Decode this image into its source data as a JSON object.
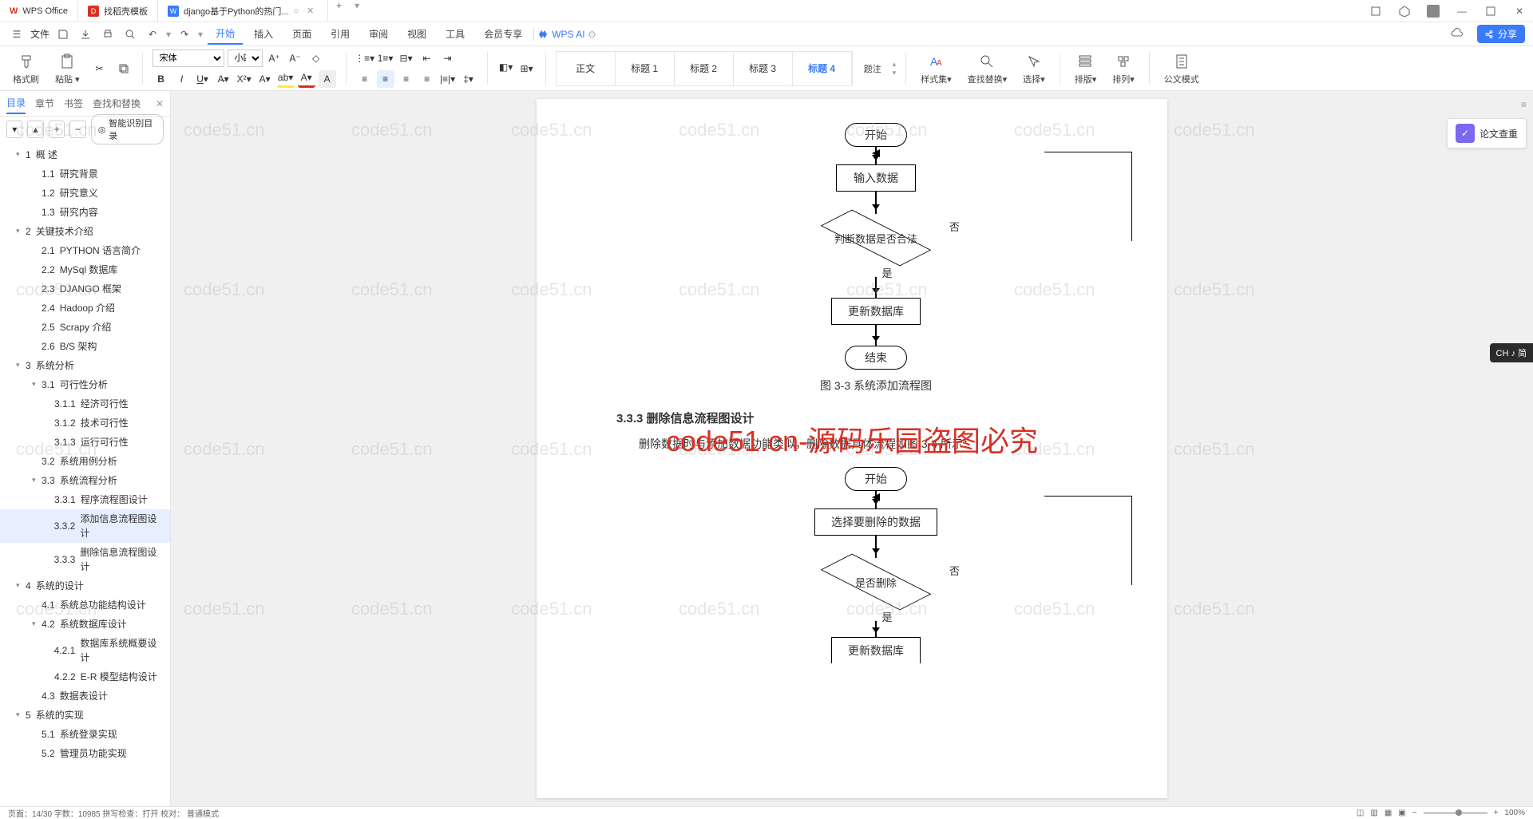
{
  "app": {
    "name": "WPS Office"
  },
  "tabs": [
    {
      "icon_color": "#d93025",
      "label": "找稻壳模板"
    },
    {
      "icon_color": "#3a7afe",
      "label": "django基于Python的热门...",
      "active": true
    }
  ],
  "window_buttons": [
    "⊡",
    "⬡",
    "▦",
    "—",
    "▢",
    "✕"
  ],
  "file_menu": "文件",
  "menu": {
    "items": [
      "开始",
      "插入",
      "页面",
      "引用",
      "审阅",
      "视图",
      "工具",
      "会员专享"
    ],
    "active": "开始",
    "ai": "WPS AI",
    "share": "分享"
  },
  "ribbon": {
    "format_painter": "格式刷",
    "paste": "粘贴",
    "font_name": "宋体",
    "font_size": "小四",
    "styles": [
      "正文",
      "标题 1",
      "标题 2",
      "标题 3",
      "标题 4"
    ],
    "active_style": "标题 4",
    "annotate": "题注",
    "style_group": "样式集",
    "find_replace": "查找替换",
    "select": "选择",
    "arrange": "排版",
    "align": "排列",
    "gov_mode": "公文模式"
  },
  "sidebar": {
    "tabs": [
      "目录",
      "章节",
      "书签",
      "查找和替换"
    ],
    "active_tab": "目录",
    "smart_toc": "智能识别目录",
    "outline": [
      {
        "lvl": 0,
        "exp": true,
        "num": "1",
        "text": "概   述"
      },
      {
        "lvl": 1,
        "num": "1.1",
        "text": "研究背景"
      },
      {
        "lvl": 1,
        "num": "1.2",
        "text": "研究意义"
      },
      {
        "lvl": 1,
        "num": "1.3",
        "text": "研究内容"
      },
      {
        "lvl": 0,
        "exp": true,
        "num": "2",
        "text": "关键技术介绍"
      },
      {
        "lvl": 1,
        "num": "2.1",
        "text": "PYTHON 语言简介"
      },
      {
        "lvl": 1,
        "num": "2.2",
        "text": "MySql 数据库"
      },
      {
        "lvl": 1,
        "num": "2.3",
        "text": "DJANGO 框架"
      },
      {
        "lvl": 1,
        "num": "2.4",
        "text": "Hadoop 介绍"
      },
      {
        "lvl": 1,
        "num": "2.5",
        "text": "Scrapy 介绍"
      },
      {
        "lvl": 1,
        "num": "2.6",
        "text": "B/S 架构"
      },
      {
        "lvl": 0,
        "exp": true,
        "num": "3",
        "text": "系统分析"
      },
      {
        "lvl": 1,
        "exp": true,
        "num": "3.1",
        "text": "可行性分析"
      },
      {
        "lvl": 2,
        "num": "3.1.1",
        "text": "经济可行性"
      },
      {
        "lvl": 2,
        "num": "3.1.2",
        "text": "技术可行性"
      },
      {
        "lvl": 2,
        "num": "3.1.3",
        "text": "运行可行性"
      },
      {
        "lvl": 1,
        "num": "3.2",
        "text": "系统用例分析"
      },
      {
        "lvl": 1,
        "exp": true,
        "num": "3.3",
        "text": "系统流程分析"
      },
      {
        "lvl": 2,
        "num": "3.3.1",
        "text": "程序流程图设计"
      },
      {
        "lvl": 2,
        "num": "3.3.2",
        "text": "添加信息流程图设计",
        "selected": true
      },
      {
        "lvl": 2,
        "num": "3.3.3",
        "text": "删除信息流程图设计"
      },
      {
        "lvl": 0,
        "exp": true,
        "num": "4",
        "text": "系统的设计"
      },
      {
        "lvl": 1,
        "num": "4.1",
        "text": "系统总功能结构设计"
      },
      {
        "lvl": 1,
        "exp": true,
        "num": "4.2",
        "text": "系统数据库设计"
      },
      {
        "lvl": 2,
        "num": "4.2.1",
        "text": "数据库系统概要设计"
      },
      {
        "lvl": 2,
        "num": "4.2.2",
        "text": "E-R 模型结构设计"
      },
      {
        "lvl": 1,
        "num": "4.3",
        "text": "数据表设计"
      },
      {
        "lvl": 0,
        "exp": true,
        "num": "5",
        "text": "系统的实现"
      },
      {
        "lvl": 1,
        "num": "5.1",
        "text": "系统登录实现"
      },
      {
        "lvl": 1,
        "num": "5.2",
        "text": "管理员功能实现"
      }
    ]
  },
  "document": {
    "flowchart1": {
      "start": "开始",
      "input": "输入数据",
      "decide": "判断数据是否合法",
      "yes": "是",
      "no": "否",
      "update": "更新数据库",
      "end": "结束",
      "caption": "图 3-3 系统添加流程图"
    },
    "section_heading": "3.3.3 删除信息流程图设计",
    "paragraph": "删除数据时与添加数据功能类似，删除数据具体流程如图 3-4 所示：",
    "flowchart2": {
      "start": "开始",
      "select": "选择要删除的数据",
      "decide": "是否删除",
      "yes": "是",
      "no": "否",
      "update": "更新数据库"
    }
  },
  "right_panel": {
    "paper_check": "论文查重"
  },
  "watermark_text": "code51.cn",
  "big_watermark": "code51.cn-源码乐园盗图必究",
  "lang_badge": "CH ♪ 简",
  "status": {
    "left": "页面：14/30   字数：10985   拼写检查：打开   校对：   普通模式",
    "zoom": "100%"
  },
  "colors": {
    "accent": "#3a7afe",
    "red": "#d93025",
    "bg": "#f0f0f0"
  }
}
